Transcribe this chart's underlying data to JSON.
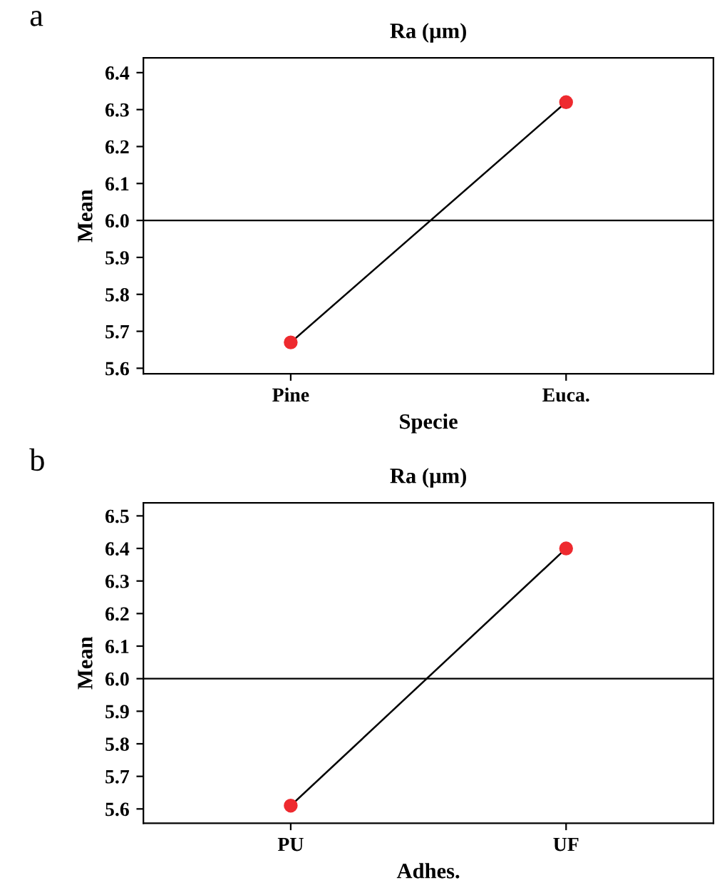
{
  "chart_data": [
    {
      "type": "line",
      "title": "Ra (µm)",
      "xlabel": "Specie",
      "ylabel": "Mean",
      "categories": [
        "Pine",
        "Euca."
      ],
      "series": [
        {
          "color": "#ee2a2f",
          "values": [
            5.67,
            6.32
          ]
        }
      ],
      "marker": "circle",
      "ylim": [
        5.585,
        6.44
      ],
      "yticks": [
        5.6,
        5.7,
        5.8,
        5.9,
        {
          "value": 6,
          "label": "6.0"
        },
        6.1,
        6.2,
        6.3,
        6.4
      ],
      "ref_lines": [
        {
          "axis": "y",
          "value": 6.0
        }
      ],
      "grid": false,
      "annotations": [
        "a"
      ]
    },
    {
      "type": "line",
      "title": "Ra (µm)",
      "xlabel": "Adhes.",
      "ylabel": "Mean",
      "categories": [
        "PU",
        "UF"
      ],
      "series": [
        {
          "color": "#ee2a2f",
          "values": [
            5.61,
            6.4
          ]
        }
      ],
      "marker": "circle",
      "ylim": [
        5.556,
        6.54
      ],
      "yticks": [
        5.6,
        5.7,
        5.8,
        5.9,
        {
          "value": 6,
          "label": "6.0"
        },
        6.1,
        6.2,
        6.3,
        6.4,
        6.5
      ],
      "ref_lines": [
        {
          "axis": "y",
          "value": 6.0
        }
      ],
      "grid": false,
      "annotations": [
        "b"
      ]
    }
  ]
}
